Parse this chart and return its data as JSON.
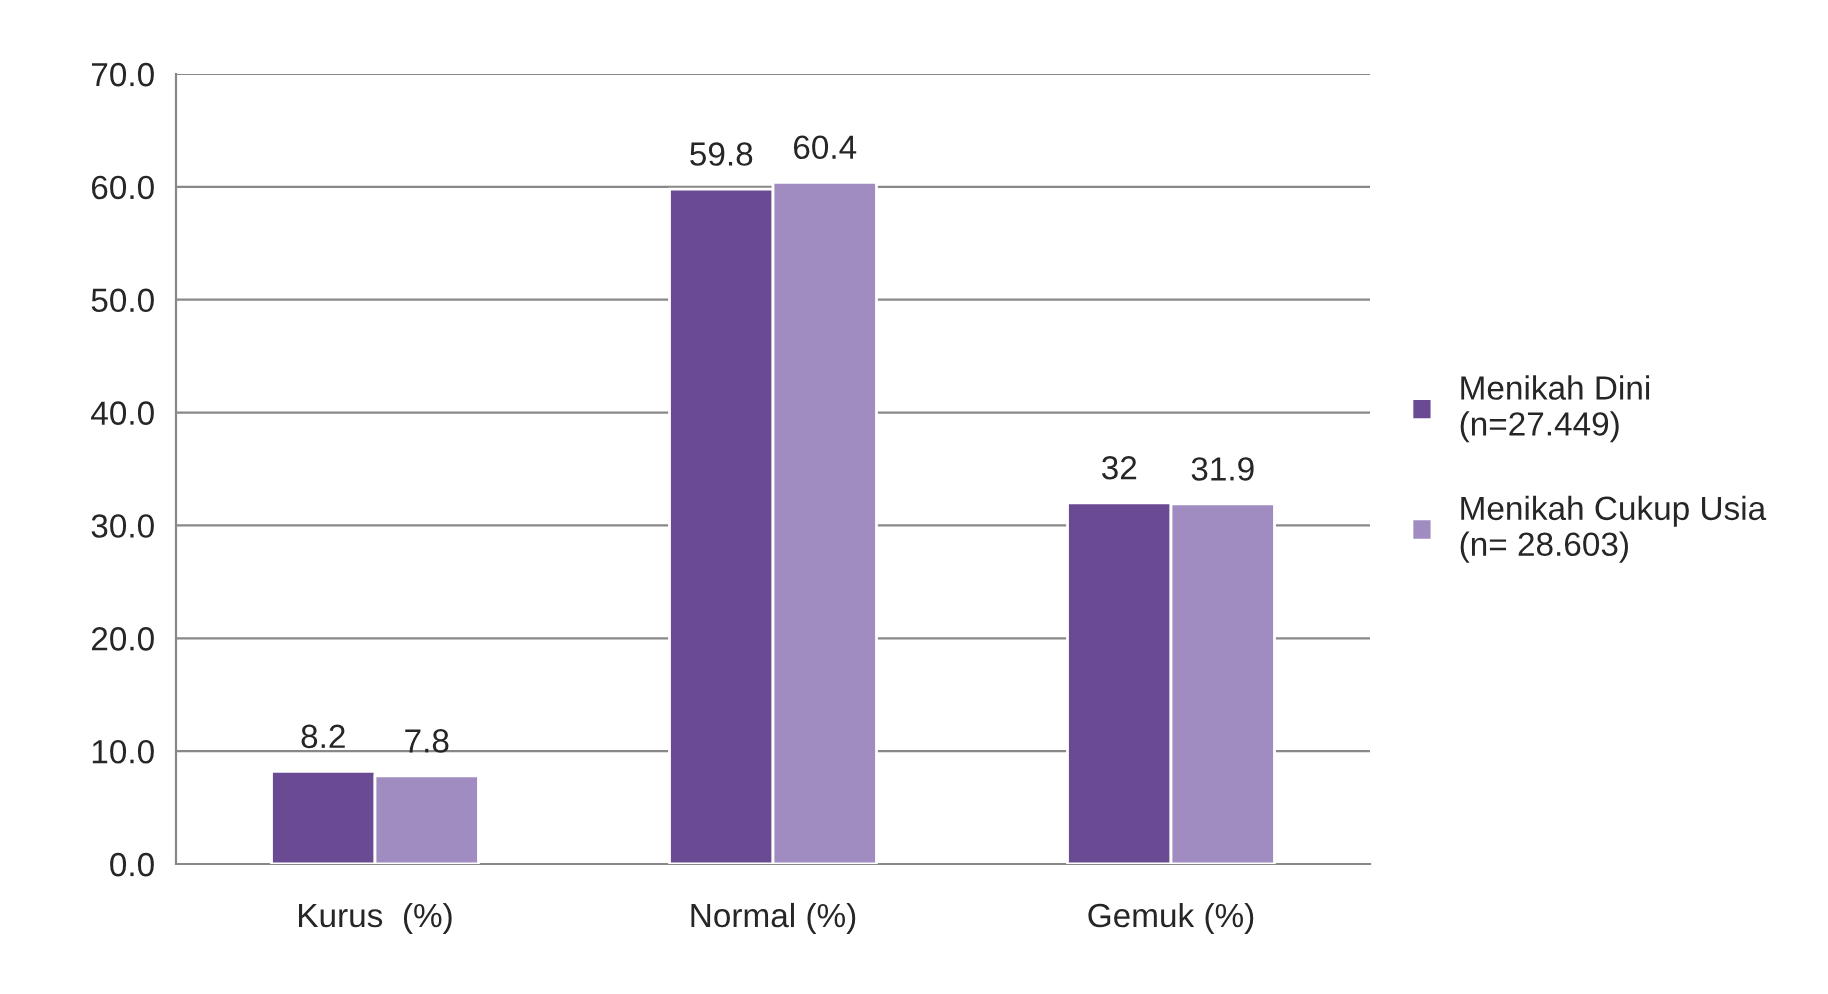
{
  "chart_data": {
    "type": "bar",
    "categories": [
      "Kurus  (%)",
      "Normal (%)",
      "Gemuk (%)"
    ],
    "series": [
      {
        "name": "Menikah Dini\n(n=27.449)",
        "color": "#6a4a93",
        "values": [
          8.2,
          59.8,
          32
        ],
        "value_labels": [
          "8.2",
          "59.8",
          "32"
        ]
      },
      {
        "name": "Menikah Cukup Usia\n(n= 28.603)",
        "color": "#a18cc2",
        "values": [
          7.8,
          60.4,
          31.9
        ],
        "value_labels": [
          "7.8",
          "60.4",
          "31.9"
        ]
      }
    ],
    "ylim": [
      0,
      70
    ],
    "yticks": [
      {
        "value": 0,
        "label": "0.0"
      },
      {
        "value": 10,
        "label": "10.0"
      },
      {
        "value": 20,
        "label": "20.0"
      },
      {
        "value": 30,
        "label": "30.0"
      },
      {
        "value": 40,
        "label": "40.0"
      },
      {
        "value": 50,
        "label": "50.0"
      },
      {
        "value": 60,
        "label": "60.0"
      },
      {
        "value": 70,
        "label": "70.0"
      }
    ],
    "grid": "y",
    "legend": "right"
  }
}
